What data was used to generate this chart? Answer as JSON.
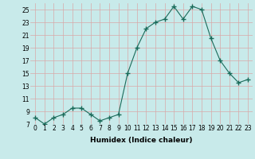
{
  "x": [
    0,
    1,
    2,
    3,
    4,
    5,
    6,
    7,
    8,
    9,
    10,
    11,
    12,
    13,
    14,
    15,
    16,
    17,
    18,
    19,
    20,
    21,
    22,
    23
  ],
  "y": [
    8,
    7,
    8,
    8.5,
    9.5,
    9.5,
    8.5,
    7.5,
    8,
    8.5,
    15,
    19,
    22,
    23,
    23.5,
    25.5,
    23.5,
    25.5,
    25,
    20.5,
    17,
    15,
    13.5,
    14
  ],
  "line_color": "#1a6b5a",
  "marker": "+",
  "marker_size": 4,
  "bg_color": "#c8eaea",
  "grid_color": "#d8a8a8",
  "xlabel": "Humidex (Indice chaleur)",
  "ylim": [
    7,
    26
  ],
  "xlim": [
    -0.5,
    23.5
  ],
  "yticks": [
    7,
    9,
    11,
    13,
    15,
    17,
    19,
    21,
    23,
    25
  ],
  "xticks": [
    0,
    1,
    2,
    3,
    4,
    5,
    6,
    7,
    8,
    9,
    10,
    11,
    12,
    13,
    14,
    15,
    16,
    17,
    18,
    19,
    20,
    21,
    22,
    23
  ],
  "xlabel_fontsize": 6.5,
  "tick_fontsize": 5.5
}
